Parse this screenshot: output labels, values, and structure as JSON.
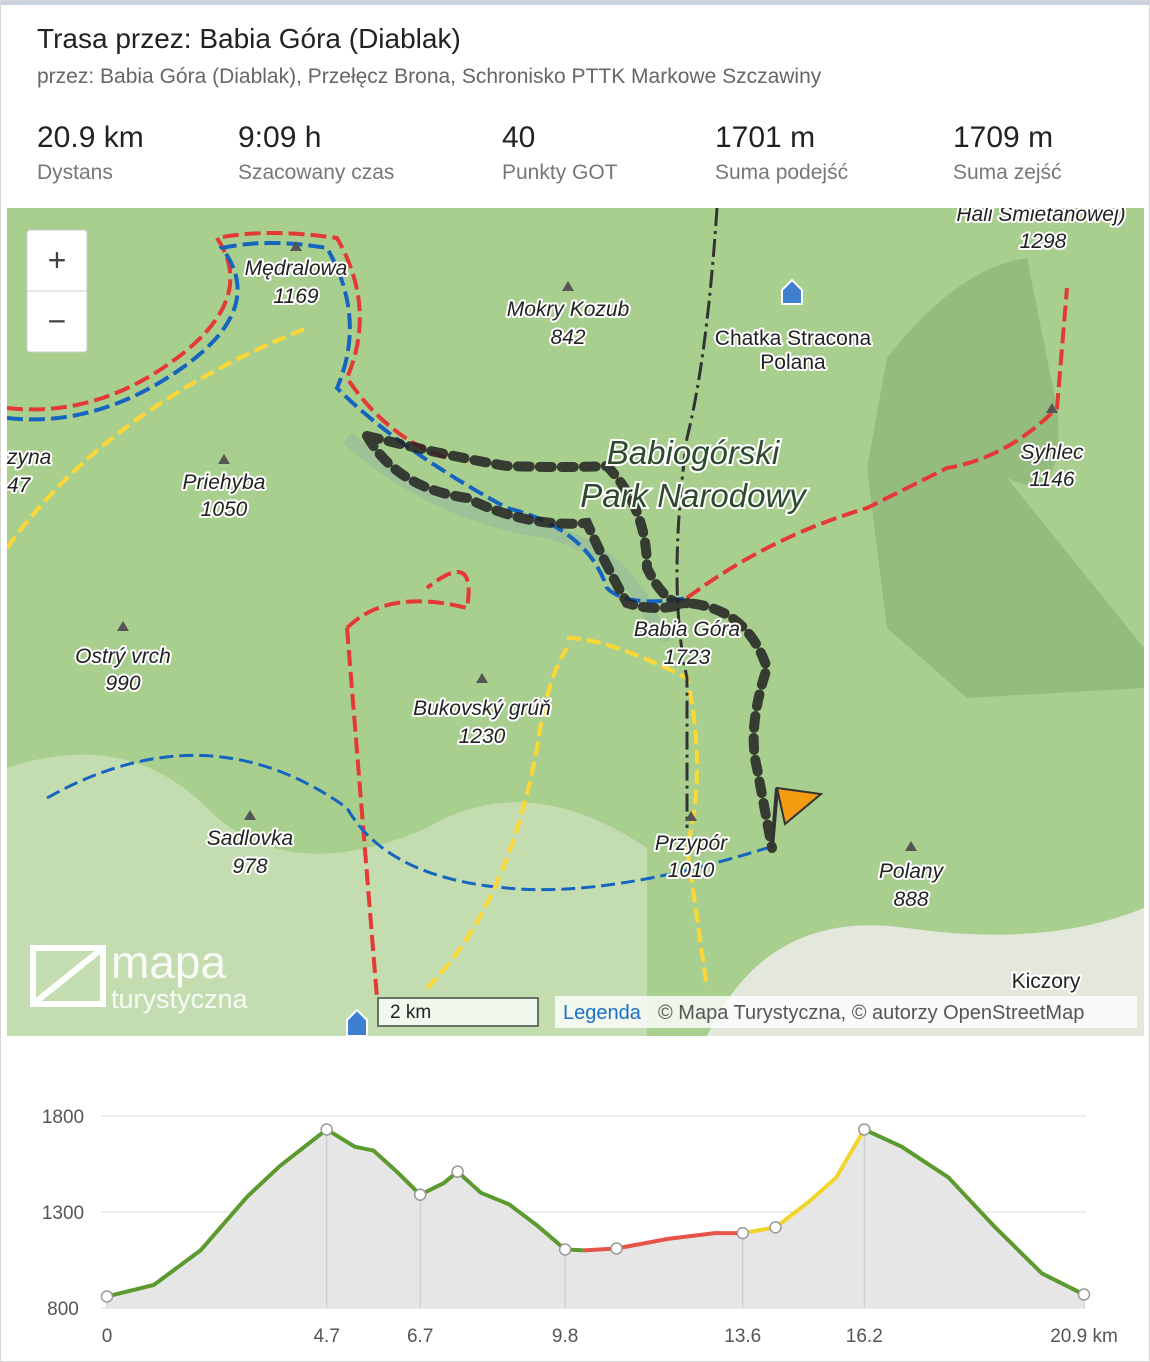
{
  "header": {
    "title": "Trasa przez: Babia Góra (Diablak)",
    "subtitle": "przez: Babia Góra (Diablak), Przełęcz Brona, Schronisko PTTK Markowe Szczawiny",
    "stats": [
      {
        "value": "20.9 km",
        "label": "Dystans"
      },
      {
        "value": "9:09 h",
        "label": "Szacowany czas"
      },
      {
        "value": "40",
        "label": "Punkty GOT"
      },
      {
        "value": "1701 m",
        "label": "Suma podejść"
      },
      {
        "value": "1709 m",
        "label": "Suma zejść"
      }
    ]
  },
  "map": {
    "zoom_in": "+",
    "zoom_out": "−",
    "labels": [
      {
        "name": "Hali Śmietanowej)",
        "elevation": 1298
      },
      {
        "name": "Mędralowa",
        "elevation": 1169
      },
      {
        "name": "Mokry Kozub",
        "elevation": 842
      },
      {
        "name": "Chatka Stracona",
        "name2": "Polana"
      },
      {
        "name": "Syhlec",
        "elevation": 1146
      },
      {
        "name": "zyna",
        "elevation": 47
      },
      {
        "name": "Priehyba",
        "elevation": 1050
      },
      {
        "name": "Ostrý vrch",
        "elevation": 990
      },
      {
        "name": "Babia Góra",
        "elevation": 1723
      },
      {
        "name": "Bukovský grúň",
        "elevation": 1230
      },
      {
        "name": "Sadlovka",
        "elevation": 978
      },
      {
        "name": "Przypór",
        "elevation": 1010
      },
      {
        "name": "Polany",
        "elevation": 888
      },
      {
        "name": "Kiczory"
      }
    ],
    "park": [
      "Babiogórski",
      "Park Narodowy"
    ],
    "scale": "2 km",
    "legend": "Legenda",
    "attribution": "© Mapa Turystyczna, © autorzy OpenStreetMap",
    "logo": [
      "mapa",
      "turystyczna"
    ]
  },
  "chart_data": {
    "type": "line",
    "series": [
      {
        "color": "#5a9a2e",
        "x": [
          0,
          1,
          2,
          3,
          3.7,
          4.7,
          5.3,
          5.7,
          6.2,
          6.7,
          7.2,
          7.5,
          8,
          8.6,
          9.2,
          9.8,
          10.2
        ],
        "values": [
          860,
          920,
          1100,
          1380,
          1540,
          1730,
          1640,
          1620,
          1510,
          1390,
          1450,
          1510,
          1400,
          1340,
          1230,
          1105,
          1100
        ]
      },
      {
        "color": "#e5534b",
        "x": [
          10.2,
          10.9,
          12,
          13,
          13.6
        ],
        "values": [
          1100,
          1110,
          1160,
          1190,
          1190
        ]
      },
      {
        "color": "#f2d52b",
        "x": [
          13.6,
          14.3,
          15,
          15.6,
          16.2
        ],
        "values": [
          1190,
          1220,
          1350,
          1480,
          1730
        ]
      },
      {
        "color": "#5a9a2e",
        "x": [
          16.2,
          17,
          18,
          19,
          20,
          20.9
        ],
        "values": [
          1730,
          1640,
          1480,
          1220,
          980,
          870
        ]
      }
    ],
    "markers": {
      "x": [
        0,
        4.7,
        6.7,
        7.5,
        9.8,
        10.9,
        13.6,
        14.3,
        16.2,
        20.9
      ],
      "values": [
        860,
        1730,
        1390,
        1510,
        1105,
        1110,
        1190,
        1220,
        1730,
        870
      ]
    },
    "xlim": [
      0,
      20.9
    ],
    "xticks": [
      0,
      4.7,
      6.7,
      9.8,
      13.6,
      16.2,
      {
        "value": 20.9,
        "label": "20.9 km"
      }
    ],
    "ylim": [
      800,
      1800
    ],
    "yticks": [
      800,
      1300,
      1800
    ],
    "grid": true
  }
}
